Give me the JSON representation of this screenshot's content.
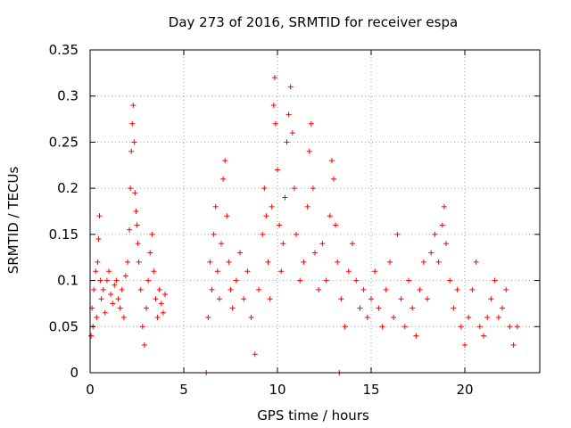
{
  "chart_data": {
    "type": "scatter",
    "title": "Day 273 of 2016, SRMTID for receiver espa",
    "xlabel": "GPS time / hours",
    "ylabel": "SRMTID / TECUs",
    "xlim": [
      0,
      24
    ],
    "ylim": [
      0,
      0.35
    ],
    "x_ticks": [
      0,
      5,
      10,
      15,
      20
    ],
    "x_tick_labels": [
      "0",
      "5",
      "10",
      "15",
      "20"
    ],
    "y_ticks": [
      0,
      0.05,
      0.1,
      0.15,
      0.2,
      0.25,
      0.3,
      0.35
    ],
    "y_tick_labels": [
      "0",
      "0.05",
      "0.1",
      "0.15",
      "0.2",
      "0.25",
      "0.3",
      "0.35"
    ],
    "grid": true,
    "marker": "+",
    "color": "#ff0000",
    "series": [
      {
        "name": "SRMTID",
        "points": [
          [
            0.05,
            0.04
          ],
          [
            0.1,
            0.07
          ],
          [
            0.15,
            0.05
          ],
          [
            0.2,
            0.09
          ],
          [
            0.3,
            0.11
          ],
          [
            0.35,
            0.06
          ],
          [
            0.4,
            0.12
          ],
          [
            0.45,
            0.145
          ],
          [
            0.5,
            0.17
          ],
          [
            0.55,
            0.1
          ],
          [
            0.6,
            0.08
          ],
          [
            0.7,
            0.09
          ],
          [
            0.8,
            0.065
          ],
          [
            0.9,
            0.1
          ],
          [
            1.0,
            0.11
          ],
          [
            1.1,
            0.085
          ],
          [
            1.2,
            0.075
          ],
          [
            1.3,
            0.095
          ],
          [
            1.4,
            0.1
          ],
          [
            1.5,
            0.08
          ],
          [
            1.6,
            0.07
          ],
          [
            1.7,
            0.09
          ],
          [
            1.8,
            0.06
          ],
          [
            1.9,
            0.105
          ],
          [
            2.0,
            0.12
          ],
          [
            2.1,
            0.155
          ],
          [
            2.15,
            0.2
          ],
          [
            2.2,
            0.24
          ],
          [
            2.25,
            0.27
          ],
          [
            2.3,
            0.29
          ],
          [
            2.35,
            0.25
          ],
          [
            2.4,
            0.195
          ],
          [
            2.45,
            0.175
          ],
          [
            2.5,
            0.16
          ],
          [
            2.55,
            0.14
          ],
          [
            2.6,
            0.12
          ],
          [
            2.7,
            0.09
          ],
          [
            2.8,
            0.05
          ],
          [
            2.9,
            0.03
          ],
          [
            3.0,
            0.07
          ],
          [
            3.1,
            0.1
          ],
          [
            3.2,
            0.13
          ],
          [
            3.3,
            0.15
          ],
          [
            3.4,
            0.11
          ],
          [
            3.5,
            0.08
          ],
          [
            3.6,
            0.06
          ],
          [
            3.7,
            0.09
          ],
          [
            3.8,
            0.075
          ],
          [
            3.9,
            0.065
          ],
          [
            4.0,
            0.085
          ],
          [
            6.2,
            0.0
          ],
          [
            6.3,
            0.06
          ],
          [
            6.4,
            0.12
          ],
          [
            6.5,
            0.09
          ],
          [
            6.6,
            0.15
          ],
          [
            6.7,
            0.18
          ],
          [
            6.8,
            0.11
          ],
          [
            6.9,
            0.08
          ],
          [
            7.0,
            0.14
          ],
          [
            7.1,
            0.21
          ],
          [
            7.2,
            0.23
          ],
          [
            7.3,
            0.17
          ],
          [
            7.4,
            0.12
          ],
          [
            7.5,
            0.09
          ],
          [
            7.6,
            0.07
          ],
          [
            7.8,
            0.1
          ],
          [
            8.0,
            0.13
          ],
          [
            8.2,
            0.08
          ],
          [
            8.4,
            0.11
          ],
          [
            8.6,
            0.06
          ],
          [
            8.8,
            0.02
          ],
          [
            9.0,
            0.09
          ],
          [
            9.2,
            0.15
          ],
          [
            9.3,
            0.2
          ],
          [
            9.4,
            0.17
          ],
          [
            9.5,
            0.12
          ],
          [
            9.6,
            0.08
          ],
          [
            9.7,
            0.18
          ],
          [
            9.8,
            0.29
          ],
          [
            9.85,
            0.32
          ],
          [
            9.9,
            0.27
          ],
          [
            10.0,
            0.22
          ],
          [
            10.1,
            0.16
          ],
          [
            10.2,
            0.11
          ],
          [
            10.3,
            0.14
          ],
          [
            10.4,
            0.19
          ],
          [
            10.5,
            0.25
          ],
          [
            10.6,
            0.28
          ],
          [
            10.7,
            0.31
          ],
          [
            10.8,
            0.26
          ],
          [
            10.9,
            0.2
          ],
          [
            11.0,
            0.15
          ],
          [
            11.2,
            0.1
          ],
          [
            11.4,
            0.12
          ],
          [
            11.6,
            0.18
          ],
          [
            11.7,
            0.24
          ],
          [
            11.8,
            0.27
          ],
          [
            11.9,
            0.2
          ],
          [
            12.0,
            0.13
          ],
          [
            12.2,
            0.09
          ],
          [
            12.4,
            0.14
          ],
          [
            12.6,
            0.1
          ],
          [
            12.8,
            0.17
          ],
          [
            12.9,
            0.23
          ],
          [
            13.0,
            0.21
          ],
          [
            13.1,
            0.16
          ],
          [
            13.2,
            0.12
          ],
          [
            13.3,
            0.0
          ],
          [
            13.4,
            0.08
          ],
          [
            13.6,
            0.05
          ],
          [
            13.8,
            0.11
          ],
          [
            14.0,
            0.14
          ],
          [
            14.2,
            0.1
          ],
          [
            14.4,
            0.07
          ],
          [
            14.6,
            0.09
          ],
          [
            14.8,
            0.06
          ],
          [
            15.0,
            0.08
          ],
          [
            15.2,
            0.11
          ],
          [
            15.4,
            0.07
          ],
          [
            15.6,
            0.05
          ],
          [
            15.8,
            0.09
          ],
          [
            16.0,
            0.12
          ],
          [
            16.2,
            0.06
          ],
          [
            16.4,
            0.15
          ],
          [
            16.6,
            0.08
          ],
          [
            16.8,
            0.05
          ],
          [
            17.0,
            0.1
          ],
          [
            17.2,
            0.07
          ],
          [
            17.4,
            0.04
          ],
          [
            17.6,
            0.09
          ],
          [
            17.8,
            0.12
          ],
          [
            18.0,
            0.08
          ],
          [
            18.2,
            0.13
          ],
          [
            18.4,
            0.15
          ],
          [
            18.6,
            0.12
          ],
          [
            18.8,
            0.16
          ],
          [
            18.9,
            0.18
          ],
          [
            19.0,
            0.14
          ],
          [
            19.2,
            0.1
          ],
          [
            19.4,
            0.07
          ],
          [
            19.6,
            0.09
          ],
          [
            19.8,
            0.05
          ],
          [
            20.0,
            0.03
          ],
          [
            20.2,
            0.06
          ],
          [
            20.4,
            0.09
          ],
          [
            20.6,
            0.12
          ],
          [
            20.8,
            0.05
          ],
          [
            21.0,
            0.04
          ],
          [
            21.2,
            0.06
          ],
          [
            21.4,
            0.08
          ],
          [
            21.6,
            0.1
          ],
          [
            21.8,
            0.06
          ],
          [
            22.0,
            0.07
          ],
          [
            22.2,
            0.09
          ],
          [
            22.4,
            0.05
          ],
          [
            22.6,
            0.03
          ],
          [
            22.8,
            0.05
          ]
        ]
      }
    ]
  }
}
